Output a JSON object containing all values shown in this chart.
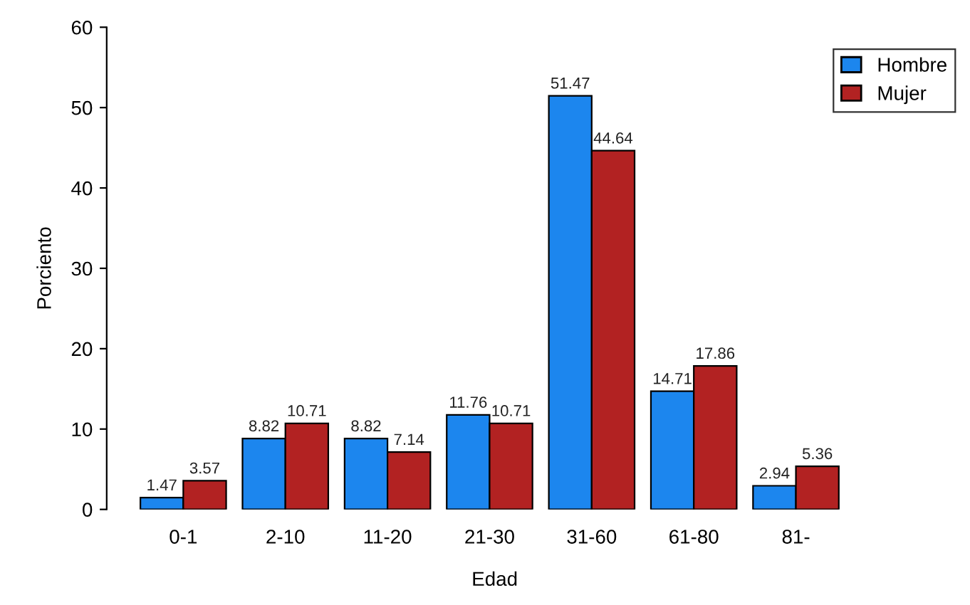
{
  "chart_data": {
    "type": "bar",
    "xlabel": "Edad",
    "ylabel": "Porciento",
    "categories": [
      "0-1",
      "2-10",
      "11-20",
      "21-30",
      "31-60",
      "61-80",
      "81-"
    ],
    "series": [
      {
        "name": "Hombre",
        "color": "#1c86ee",
        "values": [
          1.47,
          8.82,
          8.82,
          11.76,
          51.47,
          14.71,
          2.94
        ]
      },
      {
        "name": "Mujer",
        "color": "#b22222",
        "values": [
          3.57,
          10.71,
          7.14,
          10.71,
          44.64,
          17.86,
          5.36
        ]
      }
    ],
    "ylim": [
      0,
      60
    ],
    "yticks": [
      0,
      10,
      20,
      30,
      40,
      50,
      60
    ],
    "grid": false,
    "legend": "top right",
    "data_labels": true
  }
}
